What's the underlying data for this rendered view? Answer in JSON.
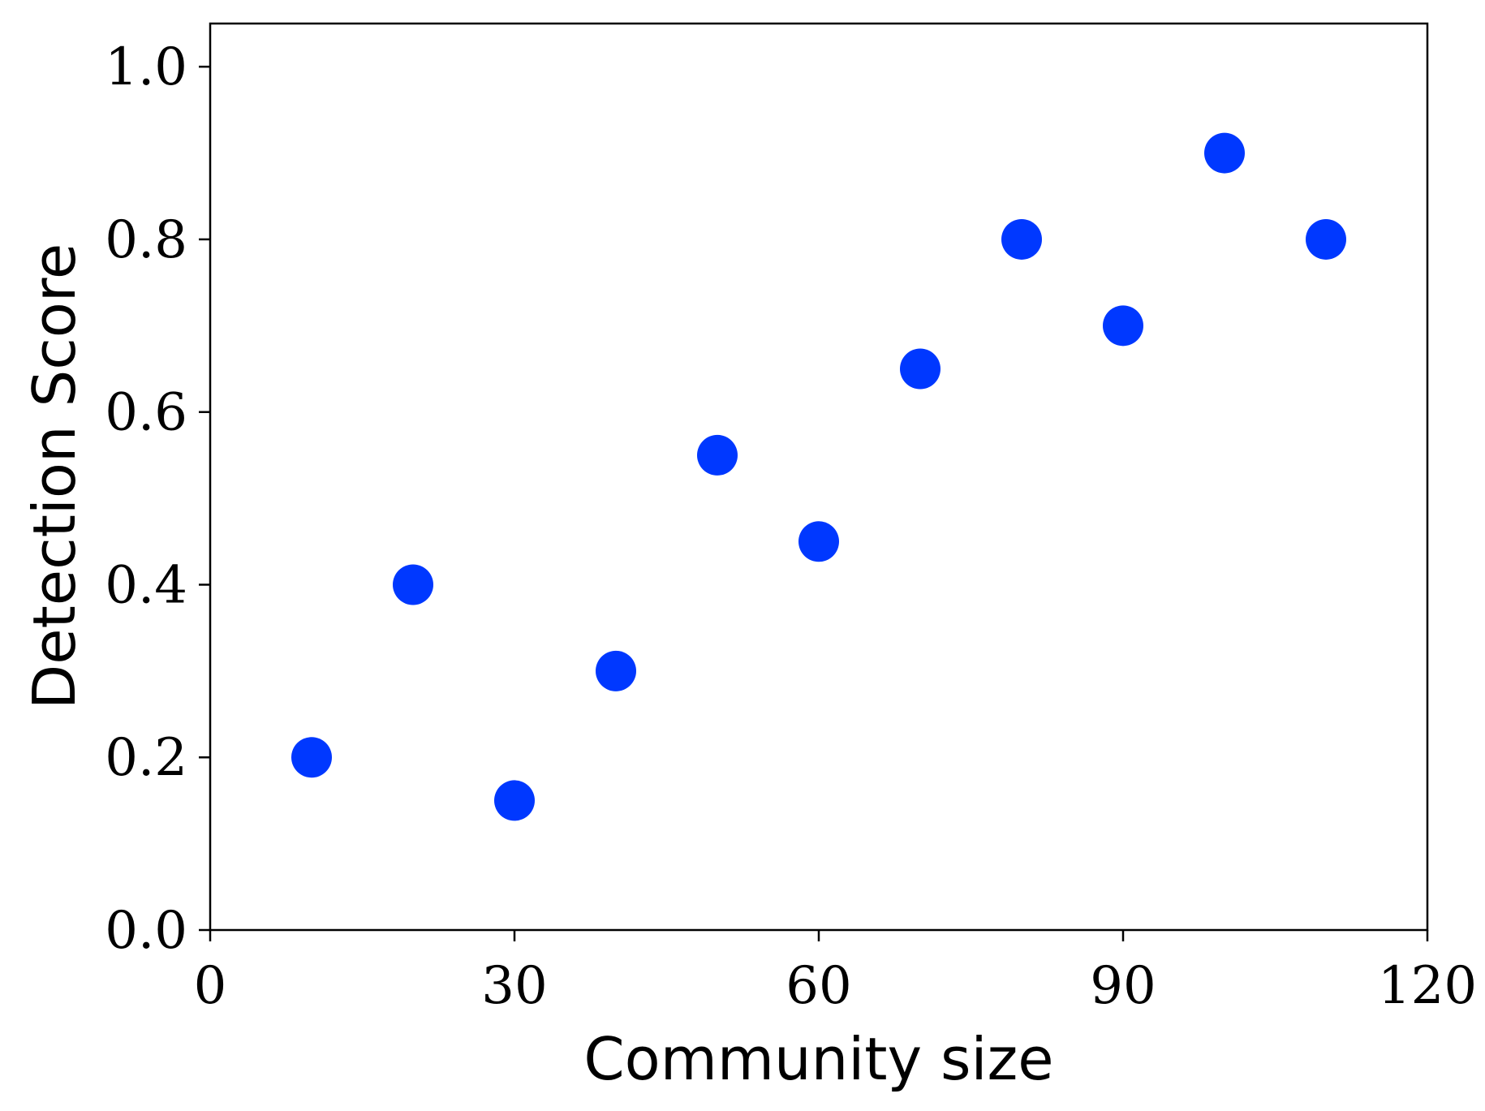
{
  "chart_data": {
    "type": "scatter",
    "title": "",
    "xlabel": "Community size",
    "ylabel": "Detection Score",
    "xlim": [
      0,
      120
    ],
    "ylim": [
      0,
      1.05
    ],
    "x_ticks": [
      0,
      30,
      60,
      90,
      120
    ],
    "x_tick_labels": [
      "0",
      "30",
      "60",
      "90",
      "120"
    ],
    "y_ticks": [
      0.0,
      0.2,
      0.4,
      0.6,
      0.8,
      1.0
    ],
    "y_tick_labels": [
      "0.0",
      "0.2",
      "0.4",
      "0.6",
      "0.8",
      "1.0"
    ],
    "grid": false,
    "series": [
      {
        "color": "#0038ff",
        "points": [
          {
            "x": 10,
            "y": 0.2
          },
          {
            "x": 20,
            "y": 0.4
          },
          {
            "x": 30,
            "y": 0.15
          },
          {
            "x": 40,
            "y": 0.3
          },
          {
            "x": 50,
            "y": 0.55
          },
          {
            "x": 60,
            "y": 0.45
          },
          {
            "x": 70,
            "y": 0.65
          },
          {
            "x": 80,
            "y": 0.8
          },
          {
            "x": 90,
            "y": 0.7
          },
          {
            "x": 100,
            "y": 0.9
          },
          {
            "x": 110,
            "y": 0.8
          }
        ]
      }
    ]
  }
}
